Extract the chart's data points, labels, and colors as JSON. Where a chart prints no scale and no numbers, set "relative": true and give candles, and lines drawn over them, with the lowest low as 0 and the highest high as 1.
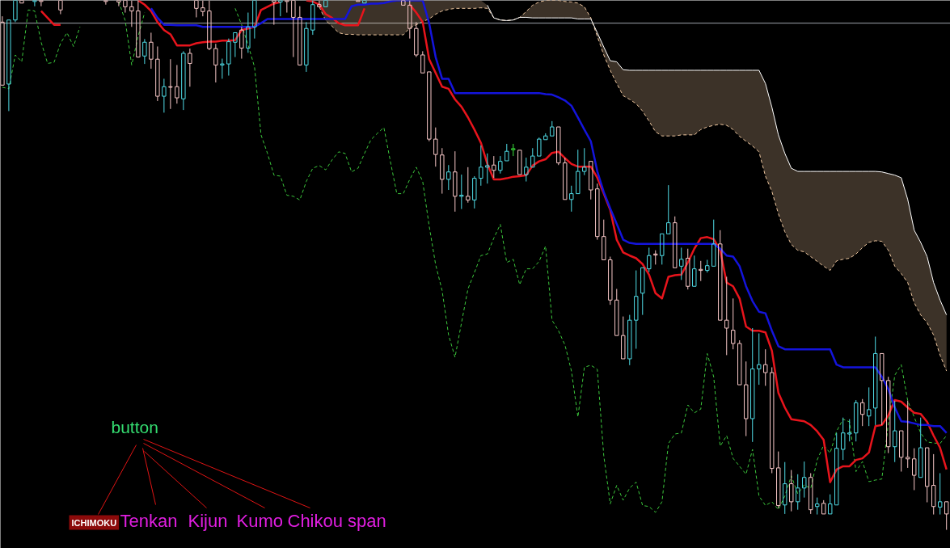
{
  "chart_data": {
    "type": "candlestick",
    "relative": true,
    "categories": [
      null,
      null,
      null,
      null,
      null,
      null,
      null,
      null,
      null,
      null,
      null,
      null,
      null,
      null,
      null,
      null,
      null,
      null,
      null,
      null,
      null,
      null,
      null,
      null,
      null,
      null,
      null,
      null,
      null,
      null,
      null,
      null,
      null,
      null,
      null,
      null,
      null,
      null,
      null,
      null,
      null,
      null,
      null,
      null,
      null,
      null,
      null,
      null,
      null,
      null,
      null,
      null,
      null,
      null,
      null,
      null,
      null,
      null,
      null,
      null,
      null,
      null,
      null,
      null,
      null,
      null,
      null,
      null,
      null,
      null,
      null,
      null,
      null,
      null,
      null,
      null,
      null,
      null,
      null,
      null,
      null,
      null,
      null,
      null,
      null,
      null,
      null,
      null,
      null,
      null,
      null,
      null,
      null,
      null,
      null,
      null,
      null,
      null,
      null,
      null,
      null,
      null,
      null,
      null,
      null,
      null,
      null,
      null,
      null,
      null,
      null,
      null,
      null,
      null,
      null,
      null,
      null,
      null,
      null,
      null,
      null,
      null,
      null,
      null,
      null,
      null,
      null,
      null,
      null,
      null,
      null,
      null,
      null,
      null,
      null,
      null,
      null,
      null,
      null,
      null,
      null,
      null,
      null,
      null,
      null,
      null,
      null
    ],
    "ohlc": [
      [
        0.959,
        0.97,
        0.839,
        0.84
      ],
      [
        0.842,
        0.963,
        0.791,
        0.963
      ],
      [
        0.963,
        1.0,
        0.959,
        1.0
      ],
      [
        1.0,
        1.0,
        0.995,
        0.995
      ],
      null,
      [
        0.998,
        1.0,
        0.989,
        1.0
      ],
      [
        1.0,
        1.0,
        0.989,
        0.998
      ],
      null,
      null,
      [
        1.0,
        1.0,
        0.974,
        0.982
      ],
      null,
      null,
      null,
      null,
      null,
      null,
      [
        1.0,
        1.0,
        0.992,
        0.998
      ],
      null,
      [
        1.0,
        1.0,
        0.989,
        0.997
      ],
      [
        1.0,
        1.0,
        0.977,
        0.988
      ],
      [
        0.988,
        1.0,
        0.95,
        0.98
      ],
      [
        0.98,
        1.0,
        0.892,
        0.893
      ],
      [
        0.895,
        0.927,
        0.88,
        0.921
      ],
      [
        0.921,
        0.939,
        0.871,
        0.889
      ],
      [
        0.889,
        0.913,
        0.81,
        0.819
      ],
      [
        0.819,
        0.852,
        0.788,
        0.837
      ],
      [
        0.837,
        0.889,
        0.795,
        0.836
      ],
      [
        0.837,
        0.878,
        0.805,
        0.816
      ],
      [
        0.814,
        0.904,
        0.793,
        0.9
      ],
      [
        0.9,
        0.909,
        0.837,
        0.881
      ],
      [
        1.0,
        1.0,
        0.968,
        0.985
      ],
      [
        0.986,
        1.0,
        0.97,
        0.979
      ],
      [
        0.98,
        1.0,
        0.906,
        0.909
      ],
      [
        0.909,
        0.918,
        0.845,
        0.878
      ],
      [
        0.878,
        0.89,
        0.852,
        0.88
      ],
      [
        0.88,
        0.928,
        0.858,
        0.922
      ],
      [
        0.921,
        0.939,
        0.893,
        0.939
      ],
      [
        0.944,
        0.95,
        0.89,
        0.91
      ],
      [
        0.91,
        0.977,
        0.901,
        0.95
      ],
      [
        0.95,
        1.0,
        0.928,
        1.0
      ],
      null,
      null,
      [
        1.0,
        1.0,
        0.954,
        0.997
      ],
      [
        0.997,
        1.0,
        0.97,
        1.0
      ],
      [
        1.0,
        1.0,
        0.977,
        0.998
      ],
      [
        1.0,
        1.0,
        0.893,
        0.968
      ],
      [
        0.968,
        0.989,
        0.877,
        0.878
      ],
      [
        0.878,
        0.959,
        0.865,
        0.947
      ],
      [
        0.944,
        1.0,
        0.935,
        0.992
      ],
      [
        0.992,
        1.0,
        0.988,
        0.988
      ],
      [
        0.988,
        1.0,
        0.988,
        1.0
      ],
      null,
      null,
      null,
      null,
      [
        1.0,
        1.0,
        0.998,
        0.998
      ],
      [
        0.995,
        1.0,
        0.995,
        1.0
      ],
      null,
      null,
      null,
      null,
      null,
      [
        1.0,
        1.0,
        0.991,
        0.991
      ],
      [
        0.991,
        1.0,
        0.928,
        0.947
      ],
      [
        0.947,
        0.959,
        0.893,
        0.897
      ],
      [
        0.897,
        0.904,
        0.863,
        0.863
      ],
      [
        0.865,
        0.865,
        0.734,
        0.738
      ],
      [
        0.738,
        0.76,
        0.686,
        0.709
      ],
      [
        0.708,
        0.721,
        0.635,
        0.662
      ],
      [
        0.662,
        0.689,
        0.642,
        0.676
      ],
      [
        0.676,
        0.715,
        0.601,
        0.63
      ],
      [
        0.63,
        0.671,
        0.606,
        0.632
      ],
      [
        0.63,
        0.685,
        0.618,
        0.623
      ],
      [
        0.623,
        0.668,
        0.607,
        0.664
      ],
      [
        0.664,
        0.726,
        0.65,
        0.685
      ],
      [
        0.685,
        0.711,
        0.654,
        0.688
      ],
      [
        0.689,
        0.706,
        0.665,
        0.679
      ],
      [
        0.679,
        0.706,
        0.673,
        0.696
      ],
      [
        0.697,
        0.729,
        0.697,
        0.715
      ],
      [
        0.718,
        0.729,
        0.706,
        0.72
      ],
      [
        0.717,
        0.717,
        0.671,
        0.671
      ],
      [
        0.671,
        0.703,
        0.658,
        0.685
      ],
      [
        0.685,
        0.721,
        0.685,
        0.706
      ],
      [
        0.706,
        0.741,
        0.706,
        0.738
      ],
      [
        0.737,
        0.749,
        0.737,
        0.744
      ],
      [
        0.744,
        0.772,
        0.744,
        0.761
      ],
      [
        0.761,
        0.761,
        0.689,
        0.693
      ],
      [
        0.693,
        0.703,
        0.624,
        0.624
      ],
      [
        0.624,
        0.65,
        0.601,
        0.635
      ],
      [
        0.635,
        0.718,
        0.635,
        0.677
      ],
      [
        0.677,
        0.721,
        0.67,
        0.685
      ],
      [
        0.696,
        0.696,
        0.624,
        0.642
      ],
      [
        0.644,
        0.654,
        0.548,
        0.554
      ],
      [
        0.554,
        0.586,
        0.51,
        0.51
      ],
      [
        0.51,
        0.516,
        0.425,
        0.434
      ],
      [
        0.434,
        0.455,
        0.367,
        0.367
      ],
      [
        0.367,
        0.403,
        0.323,
        0.323
      ],
      [
        0.323,
        0.406,
        0.311,
        0.396
      ],
      [
        0.396,
        0.49,
        0.342,
        0.441
      ],
      [
        0.447,
        0.495,
        0.406,
        0.495
      ],
      [
        0.493,
        0.533,
        0.487,
        0.518
      ],
      [
        0.521,
        0.528,
        0.501,
        0.519
      ],
      [
        0.518,
        0.559,
        0.501,
        0.559
      ],
      [
        0.559,
        0.651,
        0.559,
        0.58
      ],
      [
        0.58,
        0.592,
        0.495,
        0.495
      ],
      [
        0.498,
        0.533,
        0.472,
        0.511
      ],
      [
        0.513,
        0.531,
        0.454,
        0.46
      ],
      [
        0.46,
        0.518,
        0.46,
        0.493
      ],
      [
        0.492,
        0.508,
        0.47,
        0.49
      ],
      [
        0.49,
        0.51,
        0.486,
        0.499
      ],
      [
        0.498,
        0.586,
        0.498,
        0.54
      ],
      [
        0.54,
        0.566,
        0.396,
        0.396
      ],
      [
        0.396,
        0.478,
        0.33,
        0.381
      ],
      [
        0.377,
        0.437,
        0.341,
        0.352
      ],
      [
        0.352,
        0.358,
        0.274,
        0.274
      ],
      [
        0.274,
        0.318,
        0.177,
        0.21
      ],
      [
        0.21,
        0.381,
        0.166,
        0.304
      ],
      [
        0.304,
        0.371,
        0.274,
        0.312
      ],
      [
        0.312,
        0.341,
        0.272,
        0.297
      ],
      [
        0.297,
        0.307,
        0.107,
        0.116
      ],
      [
        0.117,
        0.148,
        0.041,
        0.046
      ],
      [
        0.047,
        0.128,
        0.03,
        0.087
      ],
      [
        0.087,
        0.113,
        0.035,
        0.053
      ],
      [
        0.053,
        0.105,
        0.038,
        0.079
      ],
      [
        0.079,
        0.129,
        0.061,
        0.099
      ],
      [
        0.099,
        0.107,
        0.03,
        0.038
      ],
      [
        0.044,
        0.061,
        0.029,
        0.049
      ],
      [
        0.05,
        0.056,
        0.03,
        0.03
      ],
      [
        0.03,
        0.067,
        0.03,
        0.049
      ],
      [
        0.047,
        0.183,
        0.047,
        0.154
      ],
      [
        0.152,
        0.212,
        0.132,
        0.183
      ],
      [
        0.181,
        0.209,
        0.167,
        0.183
      ],
      [
        0.183,
        0.245,
        0.167,
        0.24
      ],
      [
        0.24,
        0.247,
        0.196,
        0.218
      ],
      [
        0.215,
        0.269,
        0.196,
        0.227
      ],
      [
        0.23,
        0.365,
        0.198,
        0.333
      ],
      [
        0.333,
        0.333,
        0.198,
        0.282
      ],
      [
        0.282,
        0.289,
        0.145,
        0.157
      ],
      [
        0.157,
        0.244,
        0.128,
        0.187
      ],
      [
        0.187,
        0.187,
        0.11,
        0.137
      ],
      [
        0.137,
        0.244,
        0.117,
        0.134
      ],
      [
        0.134,
        0.154,
        0.075,
        0.103
      ],
      [
        0.099,
        0.212,
        0.099,
        0.155
      ],
      [
        0.155,
        0.155,
        0.052,
        0.082
      ],
      [
        0.084,
        0.143,
        0.029,
        0.044
      ],
      [
        0.043,
        0.107,
        0.029,
        0.053
      ],
      [
        0.053,
        0.053,
        0.0,
        0.03
      ]
    ],
    "colors": [
      "#f8c8c8",
      "#50dce6",
      "#50dce6",
      "#f8c8c8",
      null,
      "#50dce6",
      "#f8c8c8",
      null,
      null,
      "#f8c8c8",
      null,
      null,
      null,
      null,
      null,
      null,
      "#f8c8c8",
      null,
      "#f8c8c8",
      "#f8c8c8",
      "#f8c8c8",
      "#f8c8c8",
      "#50dce6",
      "#f8c8c8",
      "#f8c8c8",
      "#50dce6",
      "#f8c8c8",
      "#f8c8c8",
      "#50dce6",
      "#f8c8c8",
      "#f8c8c8",
      "#f8c8c8",
      "#f8c8c8",
      "#f8c8c8",
      "#50dce6",
      "#50dce6",
      "#50dce6",
      "#f8c8c8",
      "#50dce6",
      "#50dce6",
      null,
      null,
      "#f8c8c8",
      "#50dce6",
      "#f8c8c8",
      "#f8c8c8",
      "#f8c8c8",
      "#50dce6",
      "#50dce6",
      "#f8c8c8",
      "#50dce6",
      null,
      null,
      null,
      null,
      "#f8c8c8",
      "#50dce6",
      null,
      null,
      null,
      null,
      null,
      "#f8c8c8",
      "#f8c8c8",
      "#f8c8c8",
      "#f8c8c8",
      "#f8c8c8",
      "#f8c8c8",
      "#f8c8c8",
      "#50dce6",
      "#f8c8c8",
      "#50dce6",
      "#f8c8c8",
      "#50dce6",
      "#50dce6",
      "#50dce6",
      "#f8c8c8",
      "#50dce6",
      "#50dce6",
      "#3ce83c",
      "#f8c8c8",
      "#50dce6",
      "#50dce6",
      "#50dce6",
      "#50dce6",
      "#50dce6",
      "#f8c8c8",
      "#f8c8c8",
      "#50dce6",
      "#50dce6",
      "#50dce6",
      "#f8c8c8",
      "#f8c8c8",
      "#f8c8c8",
      "#f8c8c8",
      "#f8c8c8",
      "#f8c8c8",
      "#50dce6",
      "#50dce6",
      "#50dce6",
      "#50dce6",
      "#f8c8c8",
      "#50dce6",
      "#50dce6",
      "#f8c8c8",
      "#50dce6",
      "#f8c8c8",
      "#50dce6",
      "#f8c8c8",
      "#50dce6",
      "#50dce6",
      "#f8c8c8",
      "#f8c8c8",
      "#f8c8c8",
      "#f8c8c8",
      "#f8c8c8",
      "#50dce6",
      "#50dce6",
      "#f8c8c8",
      "#f8c8c8",
      "#f8c8c8",
      "#50dce6",
      "#f8c8c8",
      "#50dce6",
      "#50dce6",
      "#f8c8c8",
      "#50dce6",
      "#f8c8c8",
      "#50dce6",
      "#50dce6",
      "#50dce6",
      "#50dce6",
      "#50dce6",
      "#f8c8c8",
      "#50dce6",
      "#50dce6",
      "#f8c8c8",
      "#f8c8c8",
      "#50dce6",
      "#f8c8c8",
      "#f8c8c8",
      "#f8c8c8",
      "#50dce6",
      "#f8c8c8",
      "#f8c8c8",
      "#50dce6",
      "#f8c8c8"
    ],
    "series": [
      {
        "type": "line",
        "color": "#f0c8a0",
        "line_style": "dashed",
        "values": [
          null,
          null,
          null,
          null,
          null,
          null,
          null,
          null,
          null,
          null,
          null,
          null,
          null,
          null,
          null,
          null,
          null,
          null,
          null,
          null,
          null,
          null,
          null,
          null,
          null,
          null,
          null,
          null,
          null,
          null,
          null,
          null,
          null,
          null,
          null,
          null,
          null,
          null,
          null,
          null,
          null,
          null,
          null,
          null,
          null,
          null,
          null,
          null,
          null,
          0.988,
          0.962,
          0.951,
          0.939,
          0.936,
          0.936,
          0.935,
          0.935,
          0.935,
          0.935,
          0.935,
          0.935,
          0.935,
          0.935,
          0.948,
          0.954,
          0.96,
          0.965,
          0.974,
          0.98,
          0.983,
          0.985,
          0.985,
          0.985,
          0.985,
          0.986,
          0.985,
          0.967,
          0.963,
          0.962,
          0.963,
          0.968,
          0.979,
          0.991,
          0.997,
          1.0,
          1.0,
          1.0,
          0.998,
          0.997,
          0.995,
          0.988,
          0.967,
          0.932,
          0.897,
          0.868,
          0.843,
          0.82,
          0.813,
          0.805,
          0.791,
          0.772,
          0.752,
          0.744,
          0.744,
          0.744,
          0.746,
          0.746,
          0.746,
          0.756,
          0.761,
          0.764,
          0.766,
          0.764,
          0.756,
          0.743,
          0.734,
          0.725,
          0.714,
          0.668,
          0.639,
          0.597,
          0.563,
          0.539,
          0.528,
          0.525,
          0.516,
          0.507,
          0.498,
          0.49,
          0.508,
          0.511,
          0.513,
          0.521,
          0.533,
          0.543,
          0.546,
          0.545,
          0.528,
          0.498,
          0.484,
          0.467,
          0.429,
          0.406,
          0.391,
          0.368,
          0.33,
          0.3
        ],
        "lower": [
          null,
          null,
          null,
          null,
          null,
          null,
          null,
          null,
          null,
          null,
          null,
          null,
          null,
          null,
          null,
          null,
          null,
          null,
          null,
          null,
          null,
          null,
          null,
          null,
          null,
          null,
          null,
          null,
          null,
          null,
          null,
          null,
          null,
          null,
          null,
          null,
          null,
          null,
          null,
          null,
          null,
          null,
          null,
          null,
          null,
          null,
          null,
          null,
          null,
          0.988,
          0.962,
          0.951,
          0.939,
          0.936,
          0.936,
          0.935,
          0.935,
          0.935,
          0.935,
          0.935,
          0.935,
          0.935,
          0.935,
          0.948,
          0.954,
          0.96,
          0.965,
          0.974,
          0.98,
          0.983,
          0.985,
          0.985,
          0.985,
          0.985,
          0.986,
          0.985,
          0.967,
          0.963,
          0.962,
          0.963,
          0.968,
          0.979,
          0.991,
          0.997,
          1.0,
          1.0,
          1.0,
          0.998,
          0.997,
          0.995,
          0.988,
          0.967,
          0.932,
          0.897,
          0.868,
          0.843,
          0.82,
          0.813,
          0.805,
          0.791,
          0.772,
          0.752,
          0.744,
          0.744,
          0.744,
          0.746,
          0.746,
          0.746,
          0.756,
          0.761,
          0.764,
          0.766,
          0.764,
          0.756,
          0.743,
          0.734,
          0.725,
          0.714,
          0.668,
          0.639,
          0.597,
          0.563,
          0.539,
          0.528,
          0.525,
          0.516,
          0.507,
          0.498,
          0.49,
          0.508,
          0.511,
          0.513,
          0.521,
          0.533,
          0.543,
          0.546,
          0.545,
          0.528,
          0.498,
          0.484,
          0.467,
          0.429,
          0.406,
          0.391,
          0.368,
          0.33,
          0.3
        ],
        "upper": [
          null,
          null,
          null,
          null,
          null,
          null,
          null,
          null,
          null,
          null,
          null,
          null,
          null,
          null,
          null,
          null,
          null,
          null,
          null,
          null,
          null,
          null,
          null,
          null,
          null,
          null,
          null,
          null,
          null,
          null,
          null,
          null,
          null,
          null,
          null,
          null,
          null,
          null,
          null,
          null,
          null,
          null,
          null,
          null,
          null,
          null,
          null,
          null,
          null,
          1.0,
          1.0,
          1.0,
          1.0,
          1.0,
          1.0,
          1.0,
          1.0,
          1.0,
          1.0,
          1.0,
          1.0,
          1.0,
          1.0,
          1.0,
          1.0,
          1.0,
          1.0,
          1.0,
          1.0,
          1.0,
          1.0,
          1.0,
          1.0,
          1.0,
          1.0,
          0.991,
          0.967,
          0.963,
          0.962,
          0.963,
          0.968,
          0.968,
          0.967,
          0.967,
          0.967,
          0.967,
          0.967,
          0.967,
          0.967,
          0.965,
          0.965,
          0.965,
          0.939,
          0.912,
          0.886,
          0.884,
          0.869,
          0.868,
          0.868,
          0.868,
          0.868,
          0.868,
          0.868,
          0.868,
          0.868,
          0.868,
          0.868,
          0.868,
          0.868,
          0.868,
          0.868,
          0.868,
          0.868,
          0.868,
          0.868,
          0.868,
          0.868,
          0.868,
          0.843,
          0.798,
          0.746,
          0.711,
          0.683,
          0.677,
          0.677,
          0.677,
          0.677,
          0.677,
          0.677,
          0.677,
          0.677,
          0.677,
          0.677,
          0.677,
          0.677,
          0.677,
          0.676,
          0.673,
          0.67,
          0.665,
          0.624,
          0.566,
          0.543,
          0.516,
          0.467,
          0.434,
          0.406
        ]
      },
      {
        "type": "line",
        "color": "#ffffff",
        "values": [
          null,
          null,
          null,
          null,
          null,
          null,
          null,
          null,
          null,
          null,
          null,
          null,
          null,
          null,
          null,
          null,
          null,
          null,
          null,
          null,
          null,
          null,
          null,
          null,
          null,
          null,
          null,
          null,
          null,
          null,
          null,
          null,
          null,
          null,
          null,
          null,
          null,
          null,
          null,
          null,
          null,
          null,
          null,
          null,
          null,
          null,
          null,
          null,
          null,
          null,
          null,
          null,
          null,
          null,
          null,
          null,
          null,
          null,
          null,
          null,
          null,
          null,
          null,
          null,
          null,
          null,
          null,
          null,
          null,
          null,
          null,
          null,
          null,
          null,
          null,
          0.991,
          0.967,
          0.963,
          0.962,
          0.963,
          0.968,
          0.968,
          0.967,
          0.967,
          0.967,
          0.967,
          0.967,
          0.967,
          0.967,
          0.965,
          0.965,
          0.965,
          0.939,
          0.912,
          0.886,
          0.884,
          0.869,
          0.868,
          0.868,
          0.868,
          0.868,
          0.868,
          0.868,
          0.868,
          0.868,
          0.868,
          0.868,
          0.868,
          0.868,
          0.868,
          0.868,
          0.868,
          0.868,
          0.868,
          0.868,
          0.868,
          0.868,
          0.868,
          0.843,
          0.798,
          0.746,
          0.711,
          0.683,
          0.677,
          0.677,
          0.677,
          0.677,
          0.677,
          0.677,
          0.677,
          0.677,
          0.677,
          0.677,
          0.677,
          0.677,
          0.677,
          0.676,
          0.673,
          0.67,
          0.665,
          0.624,
          0.566,
          0.543,
          0.516,
          0.467,
          0.434,
          0.406
        ]
      },
      {
        "type": "line",
        "color": "#3cc83c",
        "line_style": "dashed",
        "values": [
          0.836,
          0.833,
          0.897,
          0.884,
          0.982,
          0.98,
          0.921,
          0.881,
          0.883,
          0.919,
          0.939,
          0.913,
          0.95,
          null,
          null,
          null,
          null,
          null,
          0.998,
          0.962,
          0.878,
          0.932,
          0.977,
          null,
          null,
          null,
          null,
          null,
          null,
          null,
          null,
          null,
          null,
          null,
          null,
          null,
          0.985,
          0.954,
          0.916,
          0.874,
          0.746,
          0.711,
          0.67,
          0.668,
          0.632,
          0.63,
          0.623,
          0.658,
          0.683,
          0.688,
          0.68,
          0.699,
          0.714,
          0.711,
          0.676,
          0.683,
          0.711,
          0.737,
          0.749,
          0.76,
          0.696,
          0.635,
          0.635,
          0.662,
          0.685,
          0.658,
          0.574,
          0.501,
          0.452,
          0.368,
          0.326,
          0.391,
          0.455,
          0.486,
          0.518,
          0.521,
          0.551,
          0.577,
          0.505,
          0.511,
          0.463,
          0.493,
          0.493,
          0.507,
          0.536,
          0.396,
          0.376,
          0.349,
          0.3,
          0.213,
          0.307,
          0.311,
          0.303,
          0.14,
          0.049,
          0.084,
          0.056,
          0.079,
          0.09,
          0.046,
          0.044,
          0.033,
          0.053,
          0.163,
          0.181,
          0.183,
          0.236,
          0.221,
          0.228,
          0.333,
          0.289,
          0.158,
          0.178,
          0.135,
          0.12,
          0.105,
          0.152,
          0.064,
          0.046,
          0.053,
          0.038,
          0.064,
          0.102,
          0.068,
          0.085,
          0.078,
          0.132,
          0.16,
          0.145,
          0.186,
          0.209,
          0.204,
          0.11,
          0.129,
          0.091,
          0.094,
          0.096,
          0.201,
          0.292,
          0.312,
          0.244,
          0.213,
          0.183,
          0.166,
          0.164,
          0.163,
          0.178
        ]
      },
      {
        "type": "line",
        "color": "#e8141c",
        "values": [
          null,
          null,
          null,
          null,
          null,
          null,
          0.98,
          0.967,
          0.954,
          0.954,
          null,
          null,
          null,
          null,
          null,
          null,
          null,
          null,
          null,
          null,
          null,
          1.0,
          0.992,
          0.98,
          0.959,
          0.944,
          0.936,
          0.915,
          0.915,
          0.915,
          0.919,
          0.921,
          0.922,
          0.922,
          0.924,
          0.924,
          0.925,
          0.944,
          0.947,
          0.95,
          0.982,
          0.988,
          0.994,
          0.997,
          null,
          null,
          null,
          1.0,
          0.998,
          0.992,
          0.974,
          0.967,
          0.957,
          0.953,
          0.953,
          0.953,
          0.985,
          null,
          null,
          null,
          null,
          null,
          null,
          0.992,
          0.977,
          0.959,
          0.889,
          0.863,
          0.837,
          0.833,
          0.813,
          0.799,
          0.779,
          0.756,
          0.731,
          0.691,
          0.662,
          0.662,
          0.664,
          0.667,
          0.668,
          0.67,
          0.688,
          0.696,
          0.7,
          0.712,
          0.714,
          0.702,
          0.691,
          0.686,
          0.686,
          0.686,
          0.665,
          0.635,
          0.604,
          0.548,
          0.524,
          0.518,
          0.513,
          0.502,
          0.482,
          0.447,
          0.437,
          0.478,
          0.481,
          0.482,
          0.505,
          0.531,
          0.551,
          0.553,
          0.549,
          0.528,
          0.467,
          0.46,
          0.437,
          0.384,
          0.376,
          0.376,
          0.373,
          0.338,
          0.259,
          0.231,
          0.209,
          0.207,
          0.205,
          0.198,
          0.186,
          0.17,
          0.09,
          0.114,
          0.12,
          0.12,
          0.132,
          0.135,
          0.146,
          0.196,
          0.198,
          0.216,
          0.245,
          0.242,
          0.231,
          0.221,
          0.219,
          0.204,
          0.178,
          0.155,
          0.114
        ]
      },
      {
        "type": "line",
        "color": "#1414dc",
        "values": [
          null,
          null,
          null,
          null,
          null,
          null,
          null,
          null,
          null,
          null,
          null,
          null,
          null,
          null,
          null,
          null,
          null,
          null,
          null,
          null,
          null,
          null,
          null,
          0.985,
          0.967,
          0.954,
          0.954,
          0.953,
          0.953,
          0.953,
          0.953,
          0.95,
          0.95,
          0.95,
          0.95,
          0.95,
          0.95,
          0.95,
          0.95,
          0.95,
          0.957,
          0.965,
          0.965,
          0.965,
          0.965,
          0.965,
          0.965,
          0.965,
          0.965,
          0.965,
          0.965,
          0.965,
          0.965,
          0.965,
          0.989,
          0.992,
          0.992,
          0.994,
          0.994,
          0.995,
          0.998,
          1.0,
          1.0,
          1.0,
          1.0,
          1.0,
          0.957,
          0.893,
          0.852,
          0.852,
          0.825,
          0.825,
          0.825,
          0.825,
          0.825,
          0.825,
          0.825,
          0.825,
          0.825,
          0.825,
          0.825,
          0.825,
          0.825,
          0.825,
          0.823,
          0.822,
          0.817,
          0.811,
          0.801,
          0.779,
          0.756,
          0.734,
          0.677,
          0.638,
          0.607,
          0.578,
          0.548,
          0.542,
          0.54,
          0.54,
          0.54,
          0.54,
          0.54,
          0.54,
          0.54,
          0.54,
          0.54,
          0.54,
          0.54,
          0.54,
          0.54,
          0.531,
          0.518,
          0.516,
          0.498,
          0.46,
          0.432,
          0.412,
          0.409,
          0.376,
          0.347,
          0.341,
          0.341,
          0.341,
          0.341,
          0.341,
          0.341,
          0.341,
          0.341,
          0.312,
          0.307,
          0.307,
          0.307,
          0.307,
          0.307,
          0.307,
          0.289,
          0.266,
          0.231,
          0.205,
          0.204,
          0.201,
          0.198,
          0.198,
          0.196,
          0.196,
          0.183
        ]
      }
    ],
    "ref_lines": [
      {
        "axis": "y",
        "value": 0.957,
        "color": "#9ea4ac"
      }
    ],
    "annotations": [
      "button",
      "ICHIMOKU",
      "Tenkan",
      "Kijun",
      "Kumo",
      "Chikou span"
    ]
  }
}
